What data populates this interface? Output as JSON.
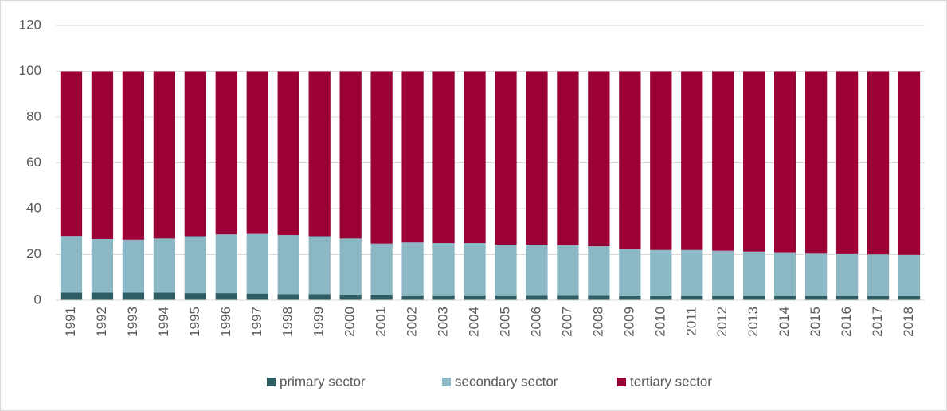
{
  "chart_data": {
    "type": "stacked_bar",
    "categories": [
      "1991",
      "1992",
      "1993",
      "1994",
      "1995",
      "1996",
      "1997",
      "1998",
      "1999",
      "2000",
      "2001",
      "2002",
      "2003",
      "2004",
      "2005",
      "2006",
      "2007",
      "2008",
      "2009",
      "2010",
      "2011",
      "2012",
      "2013",
      "2014",
      "2015",
      "2016",
      "2017",
      "2018"
    ],
    "series": [
      {
        "name": "primary sector",
        "color": "#2e5e63",
        "values": [
          3.3,
          3.3,
          3.3,
          3.3,
          3.1,
          3.1,
          2.9,
          2.7,
          2.7,
          2.5,
          2.5,
          2.2,
          2.2,
          2.2,
          2.2,
          2.3,
          2.3,
          2.3,
          2.1,
          2.1,
          2.0,
          2.0,
          2.0,
          2.0,
          2.0,
          2.0,
          1.9,
          1.9
        ]
      },
      {
        "name": "secondary sector",
        "color": "#8bb8c4",
        "values": [
          24.8,
          23.5,
          23.2,
          23.7,
          24.9,
          25.7,
          26.1,
          25.8,
          25.3,
          24.5,
          22.3,
          23.1,
          22.8,
          22.8,
          22.1,
          22.0,
          21.8,
          21.3,
          20.4,
          19.9,
          20.0,
          19.7,
          19.3,
          18.7,
          18.4,
          18.2,
          18.2,
          18.0
        ]
      },
      {
        "name": "tertiary sector",
        "color": "#9b0036",
        "values": [
          71.9,
          73.2,
          73.5,
          73.0,
          72.0,
          71.2,
          71.0,
          71.5,
          72.0,
          73.0,
          75.2,
          74.7,
          75.0,
          75.0,
          75.7,
          75.7,
          75.9,
          76.4,
          77.5,
          78.0,
          78.0,
          78.3,
          78.7,
          79.3,
          79.6,
          79.8,
          79.9,
          80.1
        ]
      }
    ],
    "ylim": [
      0,
      120
    ],
    "yticks": [
      0,
      20,
      40,
      60,
      80,
      100,
      120
    ],
    "grid": true,
    "legend": "bottom"
  }
}
